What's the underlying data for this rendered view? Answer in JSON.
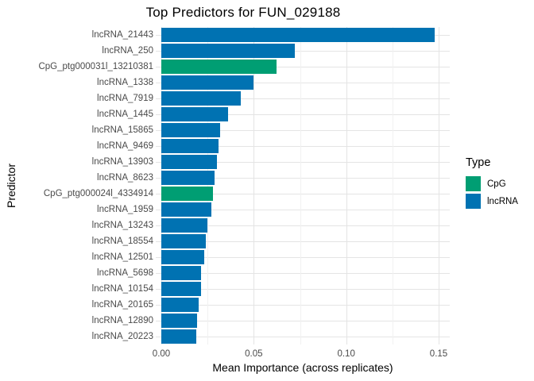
{
  "chart_data": {
    "type": "bar",
    "orientation": "horizontal",
    "title": "Top Predictors for FUN_029188",
    "xlabel": "Mean Importance (across replicates)",
    "ylabel": "Predictor",
    "xlim": [
      0,
      0.15
    ],
    "x_major_ticks": [
      0,
      0.05,
      0.1,
      0.15
    ],
    "x_tick_labels": [
      "0.00",
      "0.05",
      "0.10",
      "0.15"
    ],
    "x_minor_ticks": [
      0.025,
      0.075,
      0.125
    ],
    "grid": true,
    "background": "#ffffff",
    "colors": {
      "CpG": "#009E73",
      "lncRNA": "#0072B2"
    },
    "legend": {
      "title": "Type",
      "position": "right",
      "entries": [
        {
          "label": "CpG",
          "color": "#009E73"
        },
        {
          "label": "lncRNA",
          "color": "#0072B2"
        }
      ]
    },
    "bars": [
      {
        "label": "lncRNA_21443",
        "value": 0.148,
        "type": "lncRNA"
      },
      {
        "label": "lncRNA_250",
        "value": 0.072,
        "type": "lncRNA"
      },
      {
        "label": "CpG_ptg000031l_13210381",
        "value": 0.0625,
        "type": "CpG"
      },
      {
        "label": "lncRNA_1338",
        "value": 0.05,
        "type": "lncRNA"
      },
      {
        "label": "lncRNA_7919",
        "value": 0.043,
        "type": "lncRNA"
      },
      {
        "label": "lncRNA_1445",
        "value": 0.036,
        "type": "lncRNA"
      },
      {
        "label": "lncRNA_15865",
        "value": 0.032,
        "type": "lncRNA"
      },
      {
        "label": "lncRNA_9469",
        "value": 0.031,
        "type": "lncRNA"
      },
      {
        "label": "lncRNA_13903",
        "value": 0.03,
        "type": "lncRNA"
      },
      {
        "label": "lncRNA_8623",
        "value": 0.029,
        "type": "lncRNA"
      },
      {
        "label": "CpG_ptg000024l_4334914",
        "value": 0.028,
        "type": "CpG"
      },
      {
        "label": "lncRNA_1959",
        "value": 0.027,
        "type": "lncRNA"
      },
      {
        "label": "lncRNA_13243",
        "value": 0.025,
        "type": "lncRNA"
      },
      {
        "label": "lncRNA_18554",
        "value": 0.024,
        "type": "lncRNA"
      },
      {
        "label": "lncRNA_12501",
        "value": 0.023,
        "type": "lncRNA"
      },
      {
        "label": "lncRNA_5698",
        "value": 0.0215,
        "type": "lncRNA"
      },
      {
        "label": "lncRNA_10154",
        "value": 0.0213,
        "type": "lncRNA"
      },
      {
        "label": "lncRNA_20165",
        "value": 0.02,
        "type": "lncRNA"
      },
      {
        "label": "lncRNA_12890",
        "value": 0.0193,
        "type": "lncRNA"
      },
      {
        "label": "lncRNA_20223",
        "value": 0.0188,
        "type": "lncRNA"
      }
    ]
  }
}
